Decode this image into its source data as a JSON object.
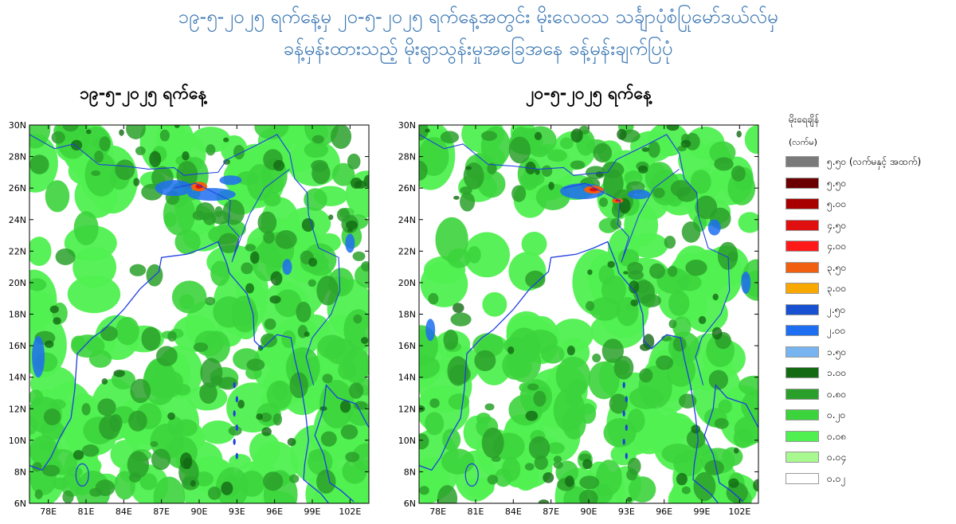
{
  "title": {
    "line1": "၁၉-၅-၂၀၂၅ ရက်နေ့မှ ၂၀-၅-၂၀၂၅ ရက်နေ့အတွင်း မိုးလေဝသ သင်္ချာပုံစံပြုမော်ဒယ်လ်မှ",
    "line2": "ခန့်မှန်းထားသည့် မိုးရွာသွန်းမှုအခြေအနေ ခန့်မှန်းချက်ပြပုံ"
  },
  "maps": [
    {
      "title": "၁၉-၅-၂၀၂၅ ရက်နေ့"
    },
    {
      "title": "၂၀-၅-၂၀၂၅ ရက်နေ့"
    }
  ],
  "axes": {
    "lat_labels": [
      "30N",
      "28N",
      "26N",
      "24N",
      "22N",
      "20N",
      "18N",
      "16N",
      "14N",
      "12N",
      "10N",
      "8N",
      "6N"
    ],
    "lon_labels": [
      "78E",
      "81E",
      "84E",
      "87E",
      "90E",
      "93E",
      "96E",
      "99E",
      "102E"
    ],
    "lat_range": [
      6,
      30
    ],
    "lon_range": [
      76.5,
      103.5
    ]
  },
  "legend": {
    "title": "မိုးရေချိန်",
    "unit": "(လက်မ)",
    "items": [
      {
        "label": "၅.၅၀ (လက်မနှင့် အထက်)",
        "color": "#7a7a7a"
      },
      {
        "label": "၅.၅၀",
        "color": "#6b0000"
      },
      {
        "label": "၅.၀၀",
        "color": "#a80000"
      },
      {
        "label": "၄.၅၀",
        "color": "#e01010"
      },
      {
        "label": "၄.၀၀",
        "color": "#ff1a1a"
      },
      {
        "label": "၃.၅၀",
        "color": "#f06010"
      },
      {
        "label": "၃.၀၀",
        "color": "#f8a800"
      },
      {
        "label": "၂.၅၀",
        "color": "#1750d0"
      },
      {
        "label": "၂.၀၀",
        "color": "#1d6ef0"
      },
      {
        "label": "၁.၅၀",
        "color": "#78b4f0"
      },
      {
        "label": "၁.၀၀",
        "color": "#136a13"
      },
      {
        "label": "၀.၈၀",
        "color": "#2aa02a"
      },
      {
        "label": "၀.၂၀",
        "color": "#3cd43c"
      },
      {
        "label": "၀.၀၈",
        "color": "#50f050"
      },
      {
        "label": "၀.၀၄",
        "color": "#a8f890"
      },
      {
        "label": "၀.၀၂",
        "color": "#ffffff"
      }
    ]
  },
  "colors": {
    "title": "#3c78b4",
    "coastline": "#1d3ee0",
    "light_green": "#50f050",
    "green": "#3cd43c",
    "mid_green": "#2aa02a",
    "dark_green": "#136a13",
    "blue": "#1d6ef0",
    "orange": "#f06010",
    "red": "#e01010"
  }
}
